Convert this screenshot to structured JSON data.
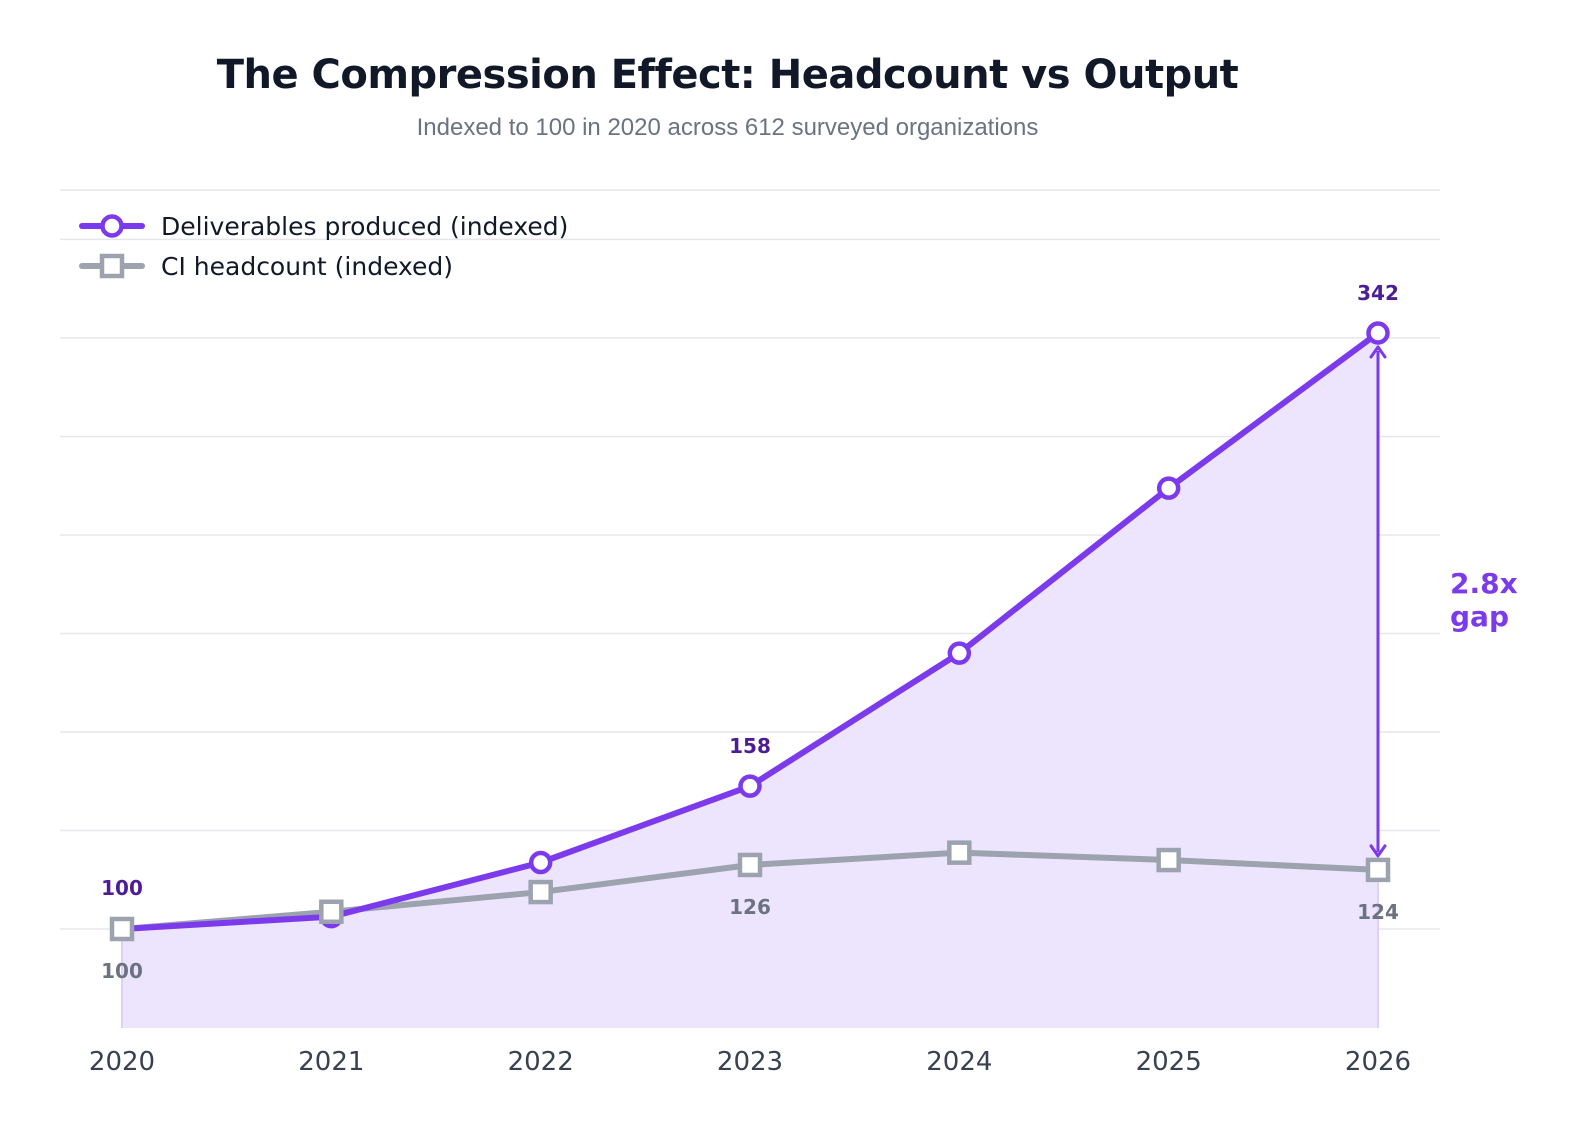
{
  "chart_data": {
    "type": "line",
    "title": "The Compression Effect: Headcount vs Output",
    "subtitle": "Indexed to 100 in 2020 across 612 surveyed organizations",
    "categories": [
      "2020",
      "2021",
      "2022",
      "2023",
      "2024",
      "2025",
      "2026"
    ],
    "series": [
      {
        "name": "Deliverables produced (indexed)",
        "values": [
          100,
          105,
          127,
          158,
          212,
          279,
          342
        ],
        "color": "#7c3aed",
        "marker": "circle",
        "area_fill": true
      },
      {
        "name": "CI headcount (indexed)",
        "values": [
          100,
          107,
          115,
          126,
          131,
          128,
          124
        ],
        "color": "#9ca3af",
        "marker": "square"
      }
    ],
    "data_labels": [
      {
        "series": 0,
        "index": 0,
        "text": "100"
      },
      {
        "series": 0,
        "index": 3,
        "text": "158"
      },
      {
        "series": 0,
        "index": 6,
        "text": "342"
      },
      {
        "series": 1,
        "index": 0,
        "text": "100"
      },
      {
        "series": 1,
        "index": 3,
        "text": "126"
      },
      {
        "series": 1,
        "index": 6,
        "text": "124"
      }
    ],
    "annotation": {
      "lines": [
        "2.8x",
        "gap"
      ],
      "at_index": 6
    },
    "ylim": [
      68,
      400
    ],
    "gridlines": [
      100,
      140,
      180,
      220,
      260,
      300,
      340,
      380
    ],
    "grid": true,
    "legend_position": "top-left"
  }
}
